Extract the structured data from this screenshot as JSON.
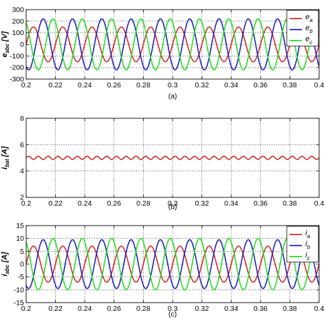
{
  "chart_data": [
    {
      "type": "line",
      "caption": "(a)",
      "ylabel_main": "e",
      "ylabel_sub": "abc",
      "ylabel_unit": " [V]",
      "xlim": [
        0.2,
        0.4
      ],
      "ylim": [
        -300,
        300
      ],
      "xticks": [
        0.2,
        0.22,
        0.24,
        0.26,
        0.28,
        0.3,
        0.32,
        0.34,
        0.36,
        0.38,
        0.4
      ],
      "xtick_labels": [
        "0.2",
        "0.22",
        "0.24",
        "0.26",
        "0.28",
        "0.3",
        "0.32",
        "0.34",
        "0.36",
        "0.38",
        "0.4"
      ],
      "yticks": [
        -300,
        -200,
        -100,
        0,
        100,
        200,
        300
      ],
      "ytick_labels": [
        "-300",
        "-200",
        "-100",
        "0",
        "100",
        "200",
        "300"
      ],
      "grid": true,
      "legend_position": "top-right",
      "frequency_hz": 50,
      "series": [
        {
          "name_main": "e",
          "name_sub": "a",
          "color": "#d62728",
          "amplitude": 150,
          "phase_deg": 0,
          "dc": 0
        },
        {
          "name_main": "e",
          "name_sub": "b",
          "color": "#1f1fbf",
          "amplitude": 220,
          "phase_deg": -120,
          "dc": 0
        },
        {
          "name_main": "e",
          "name_sub": "c",
          "color": "#22dd22",
          "amplitude": 220,
          "phase_deg": 120,
          "dc": 0
        }
      ]
    },
    {
      "type": "line",
      "caption": "(b)",
      "ylabel_main": "i",
      "ylabel_sub": "bat",
      "ylabel_unit": " [A]",
      "xlim": [
        0.2,
        0.4
      ],
      "ylim": [
        2,
        8
      ],
      "xticks": [
        0.2,
        0.22,
        0.24,
        0.26,
        0.28,
        0.3,
        0.32,
        0.34,
        0.36,
        0.38,
        0.4
      ],
      "xtick_labels": [
        "0.2",
        "0.22",
        "0.24",
        "0.26",
        "0.28",
        "0.3",
        "0.32",
        "0.34",
        "0.36",
        "0.38",
        "0.4"
      ],
      "yticks": [
        2,
        4,
        6,
        8
      ],
      "ytick_labels": [
        "2",
        "4",
        "6",
        "8"
      ],
      "grid": true,
      "frequency_hz": 150,
      "series": [
        {
          "name_main": "",
          "name_sub": "",
          "color": "#d62728",
          "amplitude": 0.12,
          "phase_deg": 0,
          "dc": 5
        }
      ]
    },
    {
      "type": "line",
      "caption": "(c)",
      "ylabel_main": "i",
      "ylabel_sub": "abc",
      "ylabel_unit": " [A]",
      "xlim": [
        0.2,
        0.4
      ],
      "ylim": [
        -15,
        15
      ],
      "xticks": [
        0.2,
        0.22,
        0.24,
        0.26,
        0.28,
        0.3,
        0.32,
        0.34,
        0.36,
        0.38,
        0.4
      ],
      "xtick_labels": [
        "0.2",
        "0.22",
        "0.24",
        "0.26",
        "0.28",
        "0.3",
        "0.32",
        "0.34",
        "0.36",
        "0.38",
        "0.4"
      ],
      "yticks": [
        -15,
        -10,
        -5,
        0,
        5,
        10,
        15
      ],
      "ytick_labels": [
        "-15",
        "-10",
        "-5",
        "0",
        "5",
        "10",
        "15"
      ],
      "grid": true,
      "legend_position": "top-right",
      "frequency_hz": 50,
      "series": [
        {
          "name_main": "i",
          "name_sub": "a",
          "color": "#d62728",
          "amplitude": 7,
          "phase_deg": 0,
          "dc": 0
        },
        {
          "name_main": "i",
          "name_sub": "b",
          "color": "#1f1fbf",
          "amplitude": 9.5,
          "phase_deg": -120,
          "dc": 0
        },
        {
          "name_main": "i",
          "name_sub": "c",
          "color": "#22dd22",
          "amplitude": 10,
          "phase_deg": 120,
          "dc": 0
        }
      ]
    }
  ]
}
